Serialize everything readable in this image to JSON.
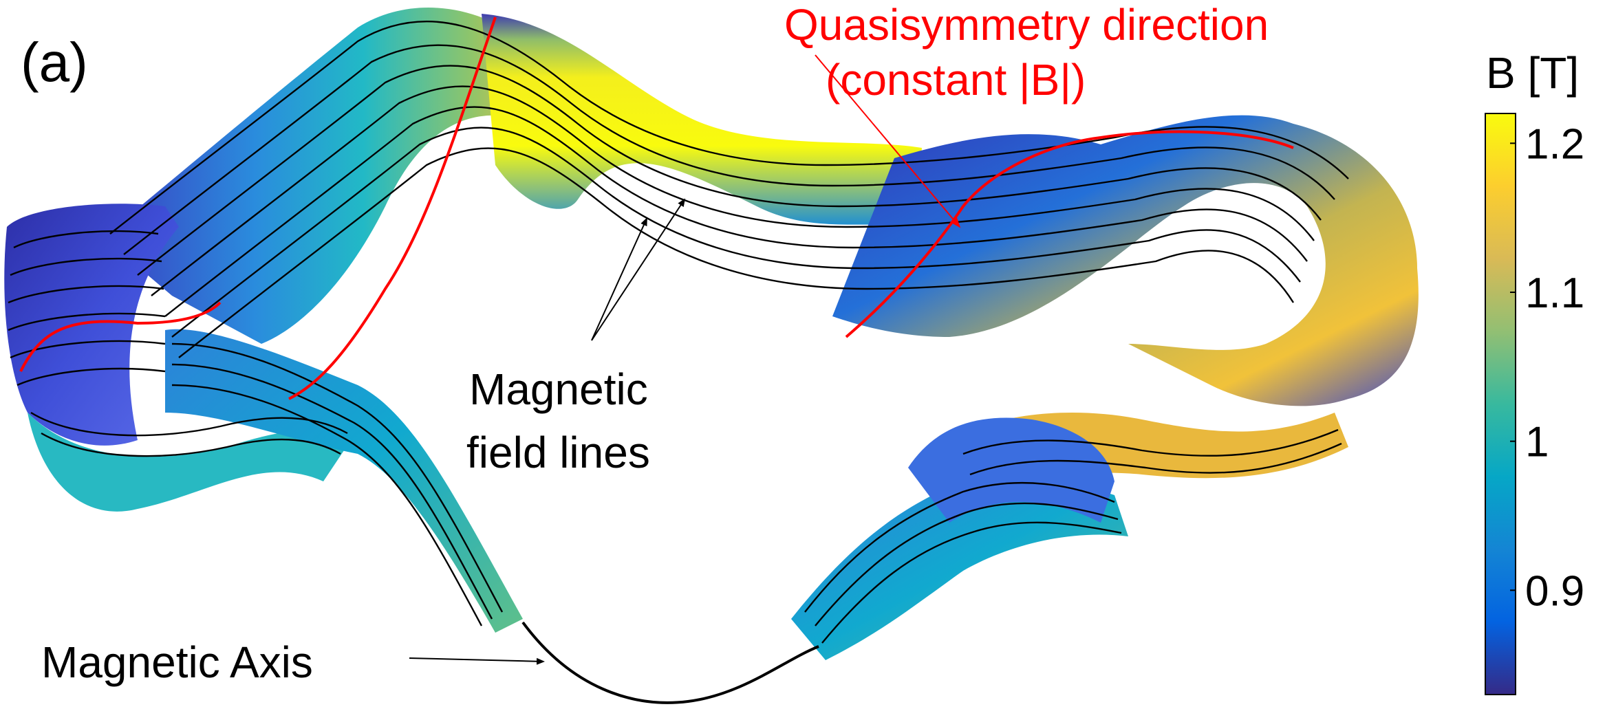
{
  "panel_label": "(a)",
  "annotations": {
    "quasisymmetry_line1": "Quasisymmetry direction",
    "quasisymmetry_line2": "(constant |B|)",
    "field_lines_line1": "Magnetic",
    "field_lines_line2": "field lines",
    "axis_label": "Magnetic Axis"
  },
  "colorbar": {
    "title": "B [T]",
    "min": 0.83,
    "max": 1.22,
    "ticks": [
      {
        "value": 1.2,
        "label": "1.2"
      },
      {
        "value": 1.1,
        "label": "1.1"
      },
      {
        "value": 1.0,
        "label": "1"
      },
      {
        "value": 0.9,
        "label": "0.9"
      }
    ],
    "colormap": "parula",
    "colors": [
      "#352a87",
      "#0363e1",
      "#1485d4",
      "#06a7c6",
      "#38b99e",
      "#92bf73",
      "#d9ba56",
      "#fcce2e",
      "#f9fb0e"
    ]
  },
  "colors": {
    "annotation_red": "#ff0000",
    "field_line": "#000000"
  }
}
